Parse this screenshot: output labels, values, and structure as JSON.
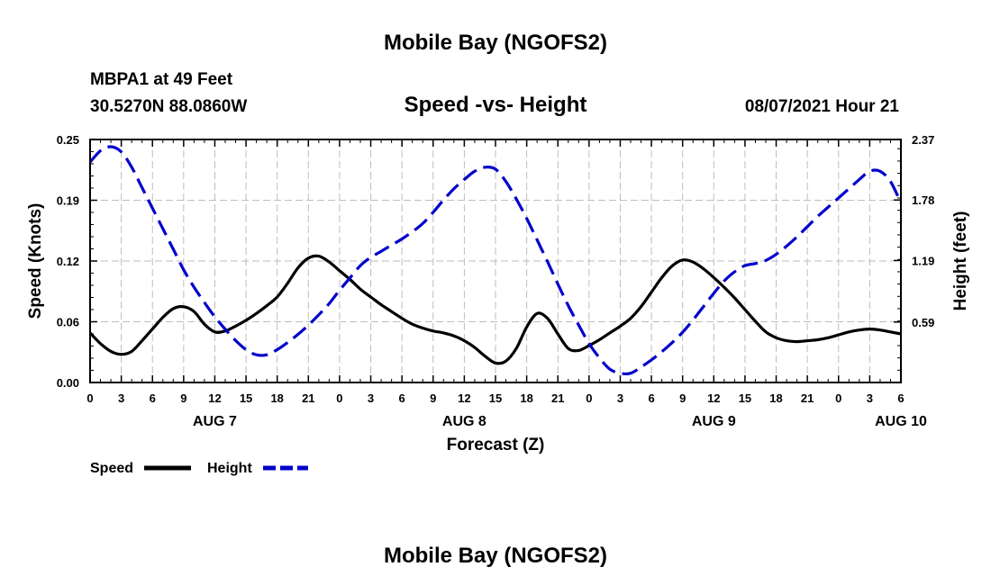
{
  "chart_data": {
    "type": "line",
    "title": "Mobile Bay (NGOFS2)",
    "footer_title": "Mobile Bay (NGOFS2)",
    "station": "MBPA1 at 49 Feet",
    "coords": "30.5270N  88.0860W",
    "subtitle": "Speed -vs- Height",
    "datetime": "08/07/2021 Hour 21",
    "xlabel": "Forecast (Z)",
    "ylabel_left": "Speed (Knots)",
    "ylabel_right": "Height (feet)",
    "xlim": [
      0,
      78
    ],
    "ylim_left": [
      0,
      0.25
    ],
    "ylim_right": [
      0,
      2.37
    ],
    "x_tick_labels": [
      "0",
      "3",
      "6",
      "9",
      "12",
      "15",
      "18",
      "21",
      "0",
      "3",
      "6",
      "9",
      "12",
      "15",
      "18",
      "21",
      "0",
      "3",
      "6",
      "9",
      "12",
      "15",
      "18",
      "21",
      "0",
      "3",
      "6"
    ],
    "x_day_labels": [
      {
        "label": "AUG 7",
        "hour": 12
      },
      {
        "label": "AUG 8",
        "hour": 36
      },
      {
        "label": "AUG 9",
        "hour": 60
      },
      {
        "label": "AUG 10",
        "hour": 78
      }
    ],
    "left_ticks": [
      {
        "value": 0.0,
        "label": "0.00"
      },
      {
        "value": 0.0625,
        "label": "0.06"
      },
      {
        "value": 0.125,
        "label": "0.12"
      },
      {
        "value": 0.1875,
        "label": "0.19"
      },
      {
        "value": 0.25,
        "label": "0.25"
      }
    ],
    "right_ticks": [
      {
        "value": 0.59,
        "label": "0.59"
      },
      {
        "value": 1.19,
        "label": "1.19"
      },
      {
        "value": 1.78,
        "label": "1.78"
      },
      {
        "value": 2.37,
        "label": "2.37"
      }
    ],
    "grid": true,
    "legend_position": "bottom-left",
    "series": [
      {
        "name": "Speed",
        "axis": "left",
        "color": "#000000",
        "style": "solid",
        "points": [
          [
            0,
            0.051
          ],
          [
            1,
            0.04
          ],
          [
            2,
            0.032
          ],
          [
            3,
            0.029
          ],
          [
            4,
            0.032
          ],
          [
            5,
            0.043
          ],
          [
            6,
            0.055
          ],
          [
            7,
            0.067
          ],
          [
            8,
            0.076
          ],
          [
            9,
            0.078
          ],
          [
            10,
            0.073
          ],
          [
            11,
            0.06
          ],
          [
            12,
            0.052
          ],
          [
            13,
            0.053
          ],
          [
            14,
            0.058
          ],
          [
            15,
            0.064
          ],
          [
            16,
            0.071
          ],
          [
            17,
            0.079
          ],
          [
            18,
            0.088
          ],
          [
            19,
            0.102
          ],
          [
            20,
            0.118
          ],
          [
            21,
            0.128
          ],
          [
            22,
            0.13
          ],
          [
            23,
            0.124
          ],
          [
            24,
            0.115
          ],
          [
            25,
            0.106
          ],
          [
            26,
            0.096
          ],
          [
            27,
            0.088
          ],
          [
            28,
            0.08
          ],
          [
            29,
            0.073
          ],
          [
            30,
            0.066
          ],
          [
            31,
            0.06
          ],
          [
            32,
            0.056
          ],
          [
            33,
            0.053
          ],
          [
            34,
            0.051
          ],
          [
            35,
            0.048
          ],
          [
            36,
            0.043
          ],
          [
            37,
            0.036
          ],
          [
            38,
            0.027
          ],
          [
            39,
            0.02
          ],
          [
            40,
            0.022
          ],
          [
            41,
            0.035
          ],
          [
            42,
            0.057
          ],
          [
            43,
            0.071
          ],
          [
            44,
            0.066
          ],
          [
            45,
            0.05
          ],
          [
            46,
            0.035
          ],
          [
            47,
            0.033
          ],
          [
            48,
            0.038
          ],
          [
            49,
            0.044
          ],
          [
            50,
            0.051
          ],
          [
            51,
            0.058
          ],
          [
            52,
            0.066
          ],
          [
            53,
            0.078
          ],
          [
            54,
            0.093
          ],
          [
            55,
            0.108
          ],
          [
            56,
            0.12
          ],
          [
            57,
            0.126
          ],
          [
            58,
            0.124
          ],
          [
            59,
            0.117
          ],
          [
            60,
            0.108
          ],
          [
            61,
            0.098
          ],
          [
            62,
            0.087
          ],
          [
            63,
            0.075
          ],
          [
            64,
            0.063
          ],
          [
            65,
            0.052
          ],
          [
            66,
            0.046
          ],
          [
            67,
            0.043
          ],
          [
            68,
            0.042
          ],
          [
            69,
            0.043
          ],
          [
            70,
            0.044
          ],
          [
            71,
            0.046
          ],
          [
            72,
            0.049
          ],
          [
            73,
            0.052
          ],
          [
            74,
            0.054
          ],
          [
            75,
            0.055
          ],
          [
            76,
            0.054
          ],
          [
            77,
            0.052
          ],
          [
            78,
            0.05
          ]
        ]
      },
      {
        "name": "Height",
        "axis": "right",
        "color": "#0000cc",
        "style": "dashed",
        "points": [
          [
            0,
            2.15
          ],
          [
            1,
            2.26
          ],
          [
            2,
            2.3
          ],
          [
            3,
            2.25
          ],
          [
            4,
            2.1
          ],
          [
            5,
            1.9
          ],
          [
            6,
            1.7
          ],
          [
            7,
            1.5
          ],
          [
            8,
            1.3
          ],
          [
            9,
            1.1
          ],
          [
            10,
            0.93
          ],
          [
            11,
            0.78
          ],
          [
            12,
            0.64
          ],
          [
            13,
            0.52
          ],
          [
            14,
            0.41
          ],
          [
            15,
            0.32
          ],
          [
            16,
            0.27
          ],
          [
            17,
            0.27
          ],
          [
            18,
            0.32
          ],
          [
            19,
            0.39
          ],
          [
            20,
            0.47
          ],
          [
            21,
            0.56
          ],
          [
            22,
            0.66
          ],
          [
            23,
            0.77
          ],
          [
            24,
            0.9
          ],
          [
            25,
            1.02
          ],
          [
            26,
            1.14
          ],
          [
            27,
            1.22
          ],
          [
            28,
            1.28
          ],
          [
            29,
            1.34
          ],
          [
            30,
            1.4
          ],
          [
            31,
            1.47
          ],
          [
            32,
            1.55
          ],
          [
            33,
            1.66
          ],
          [
            34,
            1.78
          ],
          [
            35,
            1.89
          ],
          [
            36,
            1.98
          ],
          [
            37,
            2.06
          ],
          [
            38,
            2.1
          ],
          [
            39,
            2.08
          ],
          [
            40,
            1.96
          ],
          [
            41,
            1.79
          ],
          [
            42,
            1.6
          ],
          [
            43,
            1.39
          ],
          [
            44,
            1.18
          ],
          [
            45,
            0.96
          ],
          [
            46,
            0.75
          ],
          [
            47,
            0.56
          ],
          [
            48,
            0.38
          ],
          [
            49,
            0.24
          ],
          [
            50,
            0.13
          ],
          [
            51,
            0.09
          ],
          [
            52,
            0.09
          ],
          [
            53,
            0.15
          ],
          [
            54,
            0.22
          ],
          [
            55,
            0.3
          ],
          [
            56,
            0.39
          ],
          [
            57,
            0.49
          ],
          [
            58,
            0.61
          ],
          [
            59,
            0.74
          ],
          [
            60,
            0.87
          ],
          [
            61,
            0.99
          ],
          [
            62,
            1.08
          ],
          [
            63,
            1.14
          ],
          [
            64,
            1.16
          ],
          [
            65,
            1.19
          ],
          [
            66,
            1.25
          ],
          [
            67,
            1.33
          ],
          [
            68,
            1.42
          ],
          [
            69,
            1.52
          ],
          [
            70,
            1.62
          ],
          [
            71,
            1.71
          ],
          [
            72,
            1.8
          ],
          [
            73,
            1.89
          ],
          [
            74,
            1.98
          ],
          [
            75,
            2.06
          ],
          [
            76,
            2.06
          ],
          [
            77,
            1.96
          ],
          [
            78,
            1.75
          ]
        ]
      }
    ]
  }
}
